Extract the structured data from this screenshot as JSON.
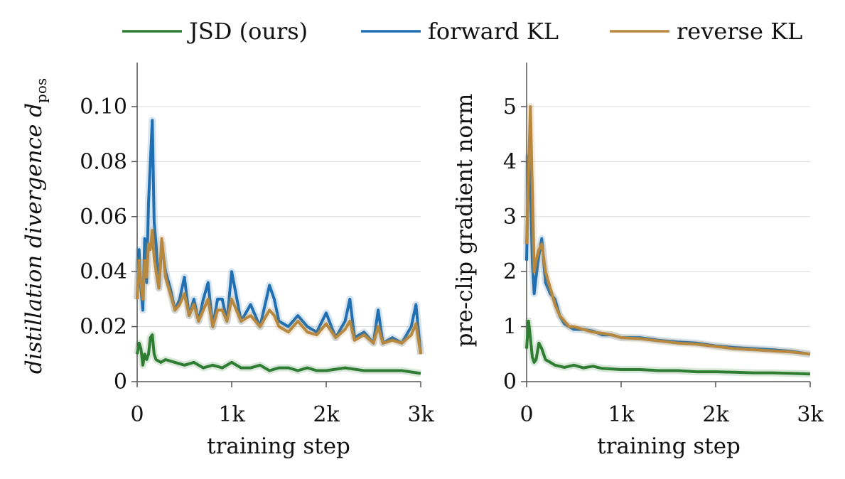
{
  "legend": {
    "items": [
      {
        "label": "JSD (ours)",
        "color": "#2e7d32"
      },
      {
        "label": "forward KL",
        "color": "#1f6fb2"
      },
      {
        "label": "reverse KL",
        "color": "#b8883e"
      }
    ],
    "placement": "top"
  },
  "chart_data": [
    {
      "type": "line",
      "ylabel": "distillation divergence d",
      "ylabel_subscript": "pos",
      "xlabel": "training step",
      "xlim": [
        0,
        3000
      ],
      "ylim": [
        0,
        0.1
      ],
      "xticks": [
        0,
        1000,
        2000,
        3000
      ],
      "xtick_labels": [
        "0",
        "1k",
        "2k",
        "3k"
      ],
      "yticks": [
        0,
        0.02,
        0.04,
        0.06,
        0.08,
        0.1
      ],
      "ytick_labels": [
        "0",
        "0.02",
        "0.04",
        "0.06",
        "0.08",
        "0.10"
      ],
      "grid": "horizontal",
      "series": [
        {
          "name": "forward KL",
          "color": "#1f6fb2",
          "x": [
            0,
            20,
            40,
            60,
            80,
            100,
            120,
            140,
            160,
            180,
            200,
            230,
            260,
            300,
            350,
            400,
            450,
            500,
            550,
            600,
            650,
            700,
            750,
            800,
            850,
            900,
            950,
            1000,
            1100,
            1200,
            1300,
            1400,
            1450,
            1500,
            1600,
            1700,
            1800,
            1900,
            2000,
            2100,
            2200,
            2250,
            2300,
            2400,
            2500,
            2550,
            2600,
            2700,
            2800,
            2900,
            2950,
            3000
          ],
          "y": [
            0.03,
            0.048,
            0.034,
            0.026,
            0.052,
            0.036,
            0.065,
            0.08,
            0.095,
            0.058,
            0.05,
            0.034,
            0.05,
            0.04,
            0.034,
            0.026,
            0.03,
            0.038,
            0.024,
            0.03,
            0.022,
            0.03,
            0.036,
            0.02,
            0.03,
            0.03,
            0.022,
            0.04,
            0.022,
            0.028,
            0.02,
            0.035,
            0.03,
            0.022,
            0.02,
            0.024,
            0.02,
            0.018,
            0.025,
            0.016,
            0.022,
            0.03,
            0.016,
            0.018,
            0.014,
            0.026,
            0.014,
            0.016,
            0.014,
            0.02,
            0.028,
            0.01
          ]
        },
        {
          "name": "reverse KL",
          "color": "#b8883e",
          "x": [
            0,
            20,
            40,
            60,
            80,
            100,
            120,
            140,
            160,
            180,
            200,
            230,
            260,
            300,
            350,
            400,
            450,
            500,
            550,
            600,
            650,
            700,
            750,
            800,
            850,
            900,
            950,
            1000,
            1100,
            1200,
            1300,
            1400,
            1450,
            1500,
            1600,
            1700,
            1800,
            1900,
            2000,
            2100,
            2200,
            2250,
            2300,
            2400,
            2500,
            2550,
            2600,
            2700,
            2800,
            2900,
            2950,
            3000
          ],
          "y": [
            0.03,
            0.044,
            0.036,
            0.03,
            0.044,
            0.038,
            0.05,
            0.048,
            0.055,
            0.045,
            0.04,
            0.034,
            0.052,
            0.038,
            0.032,
            0.026,
            0.028,
            0.032,
            0.024,
            0.028,
            0.022,
            0.026,
            0.03,
            0.02,
            0.026,
            0.026,
            0.022,
            0.03,
            0.022,
            0.024,
            0.02,
            0.026,
            0.024,
            0.02,
            0.018,
            0.022,
            0.018,
            0.017,
            0.021,
            0.016,
            0.019,
            0.022,
            0.015,
            0.017,
            0.014,
            0.02,
            0.014,
            0.015,
            0.014,
            0.017,
            0.021,
            0.01
          ]
        },
        {
          "name": "JSD (ours)",
          "color": "#2e7d32",
          "x": [
            0,
            20,
            40,
            60,
            80,
            100,
            120,
            140,
            160,
            180,
            200,
            250,
            300,
            400,
            500,
            600,
            700,
            800,
            900,
            1000,
            1100,
            1200,
            1300,
            1400,
            1500,
            1600,
            1700,
            1800,
            1900,
            2000,
            2200,
            2400,
            2600,
            2800,
            3000
          ],
          "y": [
            0.01,
            0.014,
            0.012,
            0.006,
            0.01,
            0.008,
            0.01,
            0.016,
            0.017,
            0.01,
            0.008,
            0.007,
            0.008,
            0.007,
            0.006,
            0.007,
            0.005,
            0.006,
            0.005,
            0.007,
            0.005,
            0.005,
            0.006,
            0.004,
            0.005,
            0.005,
            0.004,
            0.005,
            0.004,
            0.004,
            0.005,
            0.004,
            0.004,
            0.004,
            0.003
          ]
        }
      ]
    },
    {
      "type": "line",
      "ylabel": "pre-clip gradient norm",
      "xlabel": "training step",
      "xlim": [
        0,
        3000
      ],
      "ylim": [
        0,
        5.5
      ],
      "xticks": [
        0,
        1000,
        2000,
        3000
      ],
      "xtick_labels": [
        "0",
        "1k",
        "2k",
        "3k"
      ],
      "yticks": [
        0,
        1,
        2,
        3,
        4,
        5
      ],
      "ytick_labels": [
        "0",
        "1",
        "2",
        "3",
        "4",
        "5"
      ],
      "grid": "horizontal",
      "series": [
        {
          "name": "forward KL",
          "color": "#1f6fb2",
          "x": [
            0,
            20,
            40,
            60,
            80,
            100,
            130,
            160,
            200,
            250,
            300,
            350,
            400,
            450,
            500,
            600,
            700,
            800,
            900,
            1000,
            1200,
            1400,
            1600,
            1800,
            2000,
            2200,
            2400,
            2600,
            2800,
            3000
          ],
          "y": [
            2.2,
            4.1,
            3.6,
            2.2,
            1.6,
            1.9,
            2.3,
            2.6,
            1.8,
            1.6,
            1.5,
            1.2,
            1.05,
            1.0,
            0.95,
            0.95,
            0.92,
            0.85,
            0.85,
            0.8,
            0.8,
            0.75,
            0.72,
            0.7,
            0.65,
            0.62,
            0.6,
            0.58,
            0.55,
            0.5
          ]
        },
        {
          "name": "reverse KL",
          "color": "#b8883e",
          "x": [
            0,
            20,
            40,
            60,
            80,
            100,
            130,
            160,
            200,
            250,
            300,
            350,
            400,
            450,
            500,
            600,
            700,
            800,
            900,
            1000,
            1200,
            1400,
            1600,
            1800,
            2000,
            2200,
            2400,
            2600,
            2800,
            3000
          ],
          "y": [
            2.5,
            3.8,
            5.0,
            3.5,
            2.0,
            2.2,
            2.4,
            2.5,
            2.0,
            1.7,
            1.4,
            1.2,
            1.1,
            1.0,
            1.0,
            0.95,
            0.9,
            0.88,
            0.85,
            0.8,
            0.78,
            0.74,
            0.7,
            0.68,
            0.64,
            0.6,
            0.58,
            0.56,
            0.54,
            0.5
          ]
        },
        {
          "name": "JSD (ours)",
          "color": "#2e7d32",
          "x": [
            0,
            20,
            40,
            60,
            80,
            100,
            130,
            160,
            200,
            250,
            300,
            350,
            400,
            500,
            600,
            700,
            800,
            1000,
            1200,
            1400,
            1600,
            1800,
            2000,
            2200,
            2400,
            2600,
            2800,
            3000
          ],
          "y": [
            0.6,
            1.1,
            0.8,
            0.45,
            0.35,
            0.4,
            0.7,
            0.6,
            0.4,
            0.35,
            0.3,
            0.28,
            0.26,
            0.3,
            0.25,
            0.28,
            0.24,
            0.22,
            0.22,
            0.2,
            0.2,
            0.18,
            0.18,
            0.17,
            0.16,
            0.16,
            0.15,
            0.14
          ]
        }
      ]
    }
  ]
}
